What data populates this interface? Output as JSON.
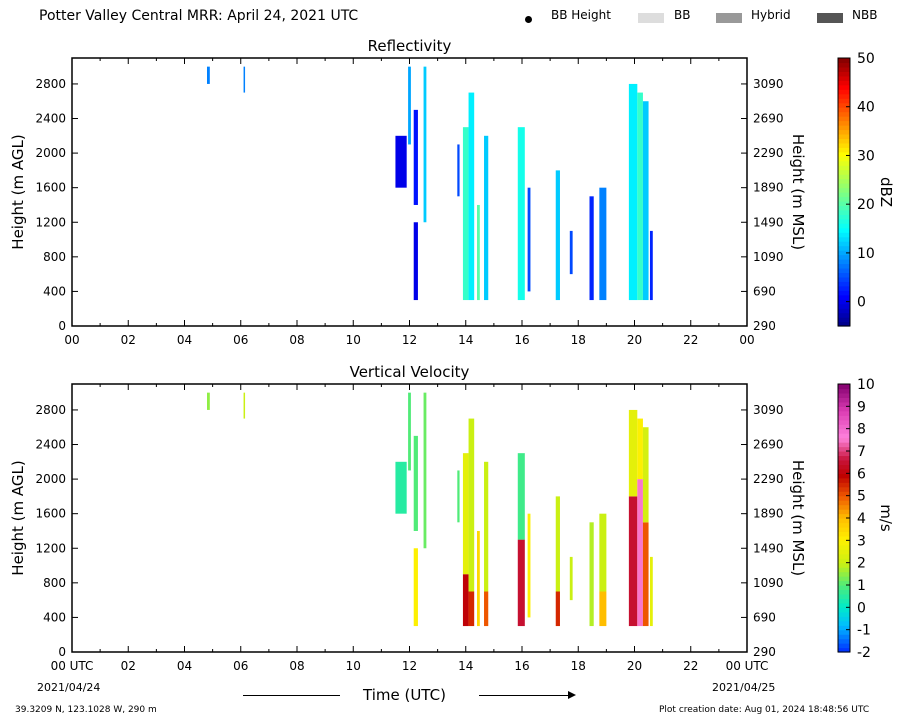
{
  "title": "Potter Valley Central MRR:  April 24, 2021 UTC",
  "legend": {
    "items": [
      {
        "label": "BB Height",
        "kind": "dot",
        "color": "#000000"
      },
      {
        "label": "BB",
        "kind": "swatch",
        "color": "#dddddd"
      },
      {
        "label": "Hybrid",
        "kind": "swatch",
        "color": "#999999"
      },
      {
        "label": "NBB",
        "kind": "swatch",
        "color": "#555555"
      }
    ]
  },
  "footer": {
    "location": "39.3209 N, 123.1028 W, 290 m",
    "creation": "Plot creation date: Aug 01, 2024 18:48:56 UTC",
    "date_start": "2021/04/24",
    "date_end": "2021/04/25",
    "time_label": "Time (UTC)"
  },
  "chart_data": [
    {
      "type": "heatmap",
      "title": "Reflectivity",
      "xlabel": "",
      "ylabel": "Height (m AGL)",
      "y2label": "Height (m MSL)",
      "xlim": [
        0,
        24
      ],
      "ylim": [
        0,
        3100
      ],
      "x_ticks": [
        "00",
        "02",
        "04",
        "06",
        "08",
        "10",
        "12",
        "14",
        "16",
        "18",
        "20",
        "22",
        "00"
      ],
      "y_ticks": [
        0,
        400,
        800,
        1200,
        1600,
        2000,
        2400,
        2800
      ],
      "y2_ticks": [
        "290",
        "690",
        "1090",
        "1490",
        "1890",
        "2290",
        "2690",
        "3090"
      ],
      "colorbar": {
        "label": "dBZ",
        "min": -5,
        "max": 50,
        "ticks": [
          0,
          10,
          20,
          30,
          40,
          50
        ]
      },
      "series": [
        {
          "x0": 4.8,
          "x1": 4.9,
          "y0": 2800,
          "y1": 3000,
          "value": 8
        },
        {
          "x0": 6.1,
          "x1": 6.15,
          "y0": 2700,
          "y1": 3000,
          "value": 8
        },
        {
          "x0": 11.5,
          "x1": 11.9,
          "y0": 1600,
          "y1": 2200,
          "value": 0
        },
        {
          "x0": 11.95,
          "x1": 12.05,
          "y0": 2100,
          "y1": 3000,
          "value": 10
        },
        {
          "x0": 12.15,
          "x1": 12.3,
          "y0": 300,
          "y1": 1200,
          "value": 0
        },
        {
          "x0": 12.15,
          "x1": 12.3,
          "y0": 1400,
          "y1": 2500,
          "value": 2
        },
        {
          "x0": 12.5,
          "x1": 12.6,
          "y0": 1200,
          "y1": 3000,
          "value": 12
        },
        {
          "x0": 13.7,
          "x1": 13.78,
          "y0": 1500,
          "y1": 2100,
          "value": 5
        },
        {
          "x0": 13.9,
          "x1": 14.1,
          "y0": 300,
          "y1": 2300,
          "value": 18
        },
        {
          "x0": 14.1,
          "x1": 14.3,
          "y0": 300,
          "y1": 2700,
          "value": 14
        },
        {
          "x0": 14.4,
          "x1": 14.5,
          "y0": 300,
          "y1": 1400,
          "value": 20
        },
        {
          "x0": 14.65,
          "x1": 14.8,
          "y0": 300,
          "y1": 2200,
          "value": 12
        },
        {
          "x0": 15.85,
          "x1": 16.1,
          "y0": 300,
          "y1": 2300,
          "value": 16
        },
        {
          "x0": 16.2,
          "x1": 16.3,
          "y0": 400,
          "y1": 1600,
          "value": 5
        },
        {
          "x0": 17.2,
          "x1": 17.35,
          "y0": 300,
          "y1": 1800,
          "value": 12
        },
        {
          "x0": 17.7,
          "x1": 17.8,
          "y0": 600,
          "y1": 1100,
          "value": 5
        },
        {
          "x0": 18.4,
          "x1": 18.55,
          "y0": 300,
          "y1": 1500,
          "value": 3
        },
        {
          "x0": 18.75,
          "x1": 19.0,
          "y0": 300,
          "y1": 1600,
          "value": 8
        },
        {
          "x0": 19.8,
          "x1": 20.1,
          "y0": 300,
          "y1": 2800,
          "value": 14
        },
        {
          "x0": 20.1,
          "x1": 20.3,
          "y0": 300,
          "y1": 2700,
          "value": 18
        },
        {
          "x0": 20.3,
          "x1": 20.5,
          "y0": 300,
          "y1": 2600,
          "value": 12
        },
        {
          "x0": 20.55,
          "x1": 20.65,
          "y0": 300,
          "y1": 1100,
          "value": 3
        }
      ]
    },
    {
      "type": "heatmap",
      "title": "Vertical Velocity",
      "xlabel": "Time (UTC)",
      "ylabel": "Height (m AGL)",
      "y2label": "Height (m MSL)",
      "xlim": [
        0,
        24
      ],
      "ylim": [
        0,
        3100
      ],
      "x_ticks": [
        "00 UTC",
        "02",
        "04",
        "06",
        "08",
        "10",
        "12",
        "14",
        "16",
        "18",
        "20",
        "22",
        "00 UTC"
      ],
      "y_ticks": [
        0,
        400,
        800,
        1200,
        1600,
        2000,
        2400,
        2800
      ],
      "y2_ticks": [
        "290",
        "690",
        "1090",
        "1490",
        "1890",
        "2290",
        "2690",
        "3090"
      ],
      "colorbar": {
        "label": "m/s",
        "min": -2,
        "max": 10,
        "ticks": [
          -2,
          -1,
          0,
          1,
          2,
          3,
          4,
          5,
          6,
          7,
          8,
          9,
          10
        ]
      },
      "series": [
        {
          "x0": 4.8,
          "x1": 4.9,
          "y0": 2800,
          "y1": 3000,
          "value": 1.5
        },
        {
          "x0": 6.1,
          "x1": 6.15,
          "y0": 2700,
          "y1": 3000,
          "value": 2
        },
        {
          "x0": 11.5,
          "x1": 11.9,
          "y0": 1600,
          "y1": 2200,
          "value": 0.5
        },
        {
          "x0": 11.95,
          "x1": 12.05,
          "y0": 2100,
          "y1": 3000,
          "value": 1
        },
        {
          "x0": 12.15,
          "x1": 12.3,
          "y0": 300,
          "y1": 1200,
          "value": 3
        },
        {
          "x0": 12.15,
          "x1": 12.3,
          "y0": 1400,
          "y1": 2500,
          "value": 1
        },
        {
          "x0": 12.5,
          "x1": 12.6,
          "y0": 1200,
          "y1": 3000,
          "value": 1.2
        },
        {
          "x0": 13.7,
          "x1": 13.78,
          "y0": 1500,
          "y1": 2100,
          "value": 1
        },
        {
          "x0": 13.9,
          "x1": 14.1,
          "y0": 300,
          "y1": 900,
          "value": 6
        },
        {
          "x0": 13.9,
          "x1": 14.1,
          "y0": 900,
          "y1": 2300,
          "value": 2.5
        },
        {
          "x0": 14.1,
          "x1": 14.3,
          "y0": 300,
          "y1": 700,
          "value": 5.5
        },
        {
          "x0": 14.1,
          "x1": 14.3,
          "y0": 700,
          "y1": 2700,
          "value": 2
        },
        {
          "x0": 14.4,
          "x1": 14.5,
          "y0": 300,
          "y1": 1400,
          "value": 3.5
        },
        {
          "x0": 14.65,
          "x1": 14.8,
          "y0": 300,
          "y1": 700,
          "value": 5
        },
        {
          "x0": 14.65,
          "x1": 14.8,
          "y0": 700,
          "y1": 2200,
          "value": 2
        },
        {
          "x0": 15.85,
          "x1": 16.1,
          "y0": 300,
          "y1": 1300,
          "value": 6.5
        },
        {
          "x0": 15.85,
          "x1": 16.1,
          "y0": 1300,
          "y1": 2300,
          "value": 0.8
        },
        {
          "x0": 16.2,
          "x1": 16.3,
          "y0": 400,
          "y1": 1600,
          "value": 3
        },
        {
          "x0": 17.2,
          "x1": 17.35,
          "y0": 300,
          "y1": 700,
          "value": 5.5
        },
        {
          "x0": 17.2,
          "x1": 17.35,
          "y0": 700,
          "y1": 1800,
          "value": 2
        },
        {
          "x0": 17.7,
          "x1": 17.8,
          "y0": 600,
          "y1": 1100,
          "value": 2
        },
        {
          "x0": 18.4,
          "x1": 18.55,
          "y0": 300,
          "y1": 1500,
          "value": 1.8
        },
        {
          "x0": 18.75,
          "x1": 19.0,
          "y0": 300,
          "y1": 700,
          "value": 4
        },
        {
          "x0": 18.75,
          "x1": 19.0,
          "y0": 700,
          "y1": 1600,
          "value": 2
        },
        {
          "x0": 19.8,
          "x1": 20.1,
          "y0": 300,
          "y1": 1800,
          "value": 6.5
        },
        {
          "x0": 19.8,
          "x1": 20.1,
          "y0": 1800,
          "y1": 2800,
          "value": 2.5
        },
        {
          "x0": 20.1,
          "x1": 20.3,
          "y0": 300,
          "y1": 2000,
          "value": 7.5
        },
        {
          "x0": 20.1,
          "x1": 20.3,
          "y0": 2000,
          "y1": 2700,
          "value": 3
        },
        {
          "x0": 20.3,
          "x1": 20.5,
          "y0": 300,
          "y1": 1500,
          "value": 5
        },
        {
          "x0": 20.3,
          "x1": 20.5,
          "y0": 1500,
          "y1": 2600,
          "value": 2.2
        },
        {
          "x0": 20.55,
          "x1": 20.65,
          "y0": 300,
          "y1": 1100,
          "value": 2.5
        }
      ]
    }
  ]
}
